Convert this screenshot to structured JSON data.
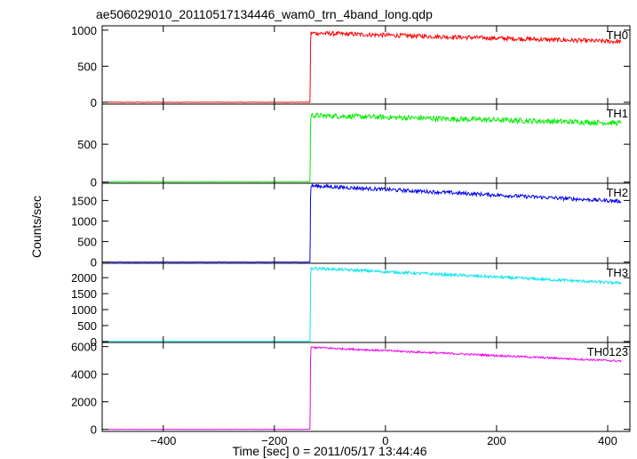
{
  "chart_data": {
    "type": "line",
    "title": "ae506029010_20110517134446_wam0_trn_4band_long.qdp",
    "xlabel": "Time [sec] 0 = 2011/05/17 13:44:46",
    "ylabel": "Counts/sec",
    "xlim": [
      -510,
      440
    ],
    "xticks": [
      -400,
      -200,
      0,
      200,
      400
    ],
    "x_start": -500,
    "x_end": 425,
    "rise_x": -136,
    "panels": [
      {
        "name": "TH0",
        "color": "#ff0000",
        "ylim": [
          -25,
          1060
        ],
        "yticks": [
          0,
          500,
          1000
        ],
        "pre_level": 0,
        "post_start": 960,
        "post_end": 840,
        "noise": 30
      },
      {
        "name": "TH1",
        "color": "#00ee00",
        "ylim": [
          -15,
          1030
        ],
        "yticks": [
          0,
          500
        ],
        "pre_level": 5,
        "post_start": 880,
        "post_end": 780,
        "noise": 35
      },
      {
        "name": "TH2",
        "color": "#0000ee",
        "ylim": [
          -30,
          1920
        ],
        "yticks": [
          0,
          500,
          1000,
          1500
        ],
        "pre_level": 0,
        "post_start": 1860,
        "post_end": 1480,
        "noise": 45
      },
      {
        "name": "TH3",
        "color": "#00e5ee",
        "ylim": [
          -30,
          2450
        ],
        "yticks": [
          0,
          500,
          1000,
          1500,
          2000
        ],
        "pre_level": 5,
        "post_start": 2300,
        "post_end": 1830,
        "noise": 45
      },
      {
        "name": "TH0123",
        "color": "#ee00ee",
        "ylim": [
          -150,
          6300
        ],
        "yticks": [
          0,
          2000,
          4000,
          6000
        ],
        "pre_level": 0,
        "post_start": 5950,
        "post_end": 4950,
        "noise": 70
      }
    ]
  }
}
